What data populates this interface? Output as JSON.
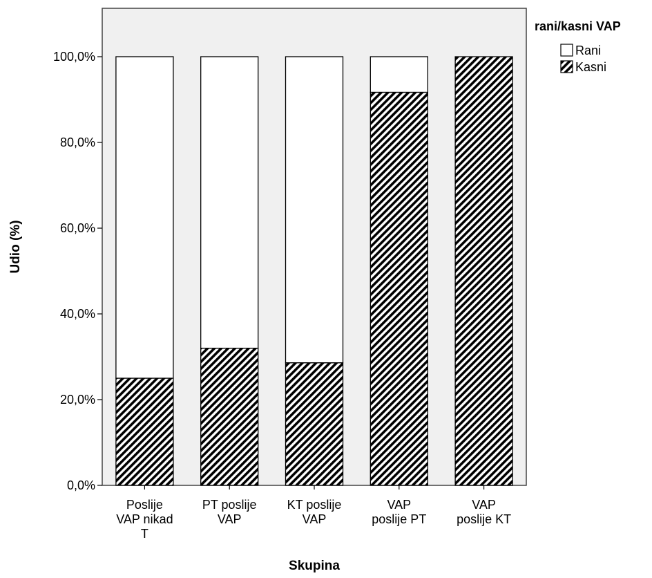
{
  "chart_data": {
    "type": "bar",
    "stacked": true,
    "categories": [
      [
        "Poslije",
        "VAP nikad",
        "T"
      ],
      [
        "PT poslije",
        "VAP"
      ],
      [
        "KT poslije",
        "VAP"
      ],
      [
        "VAP",
        "poslije PT"
      ],
      [
        "VAP",
        "poslije KT"
      ]
    ],
    "series": [
      {
        "name": "Kasni",
        "values": [
          25.0,
          32.0,
          28.6,
          91.7,
          100.0
        ],
        "fill": "hatch"
      },
      {
        "name": "Rani",
        "values": [
          75.0,
          68.0,
          71.4,
          8.3,
          0.0
        ],
        "fill": "#ffffff"
      }
    ],
    "xlabel": "Skupina",
    "ylabel": "Udio (%)",
    "ylim": [
      0,
      110
    ],
    "yticks": [
      {
        "value": 0,
        "label": "0,0%"
      },
      {
        "value": 20,
        "label": "20,0%"
      },
      {
        "value": 40,
        "label": "40,0%"
      },
      {
        "value": 60,
        "label": "60,0%"
      },
      {
        "value": 80,
        "label": "80,0%"
      },
      {
        "value": 100,
        "label": "100,0%"
      }
    ],
    "legend": {
      "title": "rani/kasni VAP",
      "position": "top-right",
      "items": [
        {
          "label": "Rani",
          "fill": "#ffffff"
        },
        {
          "label": "Kasni",
          "fill": "hatch"
        }
      ]
    },
    "grid": false,
    "plot_background": "#f0f0f0"
  }
}
